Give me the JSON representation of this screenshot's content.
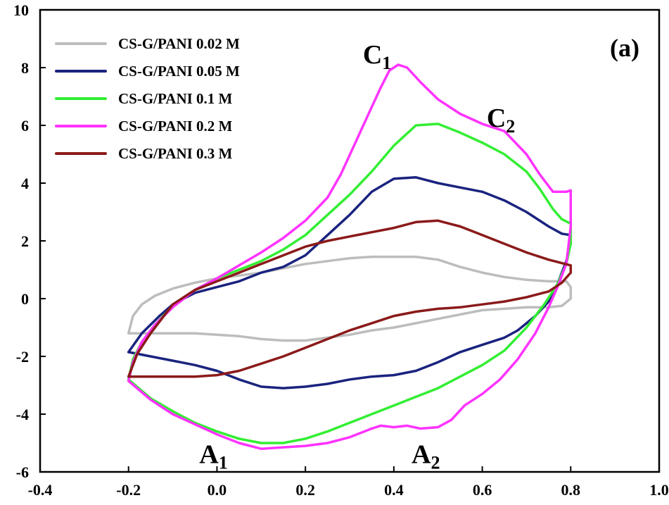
{
  "chart_data": {
    "type": "line",
    "title": "",
    "xlabel": "",
    "ylabel": "",
    "xlim": [
      -0.4,
      1.0
    ],
    "ylim": [
      -6,
      10
    ],
    "x_ticks": [
      "-0.4",
      "-0.2",
      "0.0",
      "0.2",
      "0.4",
      "0.6",
      "0.8",
      "1.0"
    ],
    "y_ticks": [
      "10",
      "8",
      "6",
      "4",
      "2",
      "0",
      "-2",
      "-4",
      "-6"
    ],
    "grid": false,
    "legend_position": "top-left",
    "panel_label": "(a)",
    "annotations": [
      {
        "main": "C",
        "sub": "1",
        "x": 0.33,
        "y": 8.15
      },
      {
        "main": "C",
        "sub": "2",
        "x": 0.61,
        "y": 5.95
      },
      {
        "main": "A",
        "sub": "1",
        "x": -0.04,
        "y": -5.7
      },
      {
        "main": "A",
        "sub": "2",
        "x": 0.44,
        "y": -5.7
      }
    ],
    "series": [
      {
        "name": "CS-G/PANI 0.02 M",
        "color": "#bdbdbd",
        "points": [
          [
            -0.2,
            -1.2
          ],
          [
            -0.19,
            -0.6
          ],
          [
            -0.17,
            -0.2
          ],
          [
            -0.14,
            0.1
          ],
          [
            -0.1,
            0.35
          ],
          [
            -0.05,
            0.55
          ],
          [
            0.0,
            0.7
          ],
          [
            0.05,
            0.8
          ],
          [
            0.1,
            0.9
          ],
          [
            0.15,
            1.05
          ],
          [
            0.2,
            1.2
          ],
          [
            0.25,
            1.3
          ],
          [
            0.3,
            1.4
          ],
          [
            0.35,
            1.45
          ],
          [
            0.4,
            1.45
          ],
          [
            0.45,
            1.45
          ],
          [
            0.5,
            1.35
          ],
          [
            0.55,
            1.1
          ],
          [
            0.6,
            0.9
          ],
          [
            0.65,
            0.75
          ],
          [
            0.7,
            0.65
          ],
          [
            0.75,
            0.6
          ],
          [
            0.79,
            0.6
          ],
          [
            0.8,
            0.4
          ],
          [
            0.8,
            0.0
          ],
          [
            0.78,
            -0.25
          ],
          [
            0.75,
            -0.3
          ],
          [
            0.7,
            -0.3
          ],
          [
            0.65,
            -0.35
          ],
          [
            0.6,
            -0.4
          ],
          [
            0.55,
            -0.55
          ],
          [
            0.5,
            -0.7
          ],
          [
            0.45,
            -0.85
          ],
          [
            0.4,
            -1.0
          ],
          [
            0.35,
            -1.1
          ],
          [
            0.3,
            -1.25
          ],
          [
            0.25,
            -1.35
          ],
          [
            0.2,
            -1.45
          ],
          [
            0.15,
            -1.45
          ],
          [
            0.1,
            -1.4
          ],
          [
            0.05,
            -1.3
          ],
          [
            0.0,
            -1.25
          ],
          [
            -0.05,
            -1.2
          ],
          [
            -0.1,
            -1.2
          ],
          [
            -0.15,
            -1.2
          ],
          [
            -0.2,
            -1.2
          ]
        ]
      },
      {
        "name": "CS-G/PANI 0.05 M",
        "color": "#1a237e",
        "points": [
          [
            -0.2,
            -1.85
          ],
          [
            -0.17,
            -1.2
          ],
          [
            -0.13,
            -0.6
          ],
          [
            -0.1,
            -0.2
          ],
          [
            -0.05,
            0.2
          ],
          [
            0.0,
            0.4
          ],
          [
            0.05,
            0.6
          ],
          [
            0.1,
            0.9
          ],
          [
            0.15,
            1.1
          ],
          [
            0.2,
            1.5
          ],
          [
            0.25,
            2.2
          ],
          [
            0.3,
            2.9
          ],
          [
            0.35,
            3.7
          ],
          [
            0.4,
            4.15
          ],
          [
            0.45,
            4.2
          ],
          [
            0.5,
            4.0
          ],
          [
            0.55,
            3.85
          ],
          [
            0.6,
            3.7
          ],
          [
            0.65,
            3.4
          ],
          [
            0.7,
            3.0
          ],
          [
            0.75,
            2.5
          ],
          [
            0.78,
            2.25
          ],
          [
            0.8,
            2.2
          ],
          [
            0.8,
            1.9
          ],
          [
            0.79,
            1.3
          ],
          [
            0.77,
            0.5
          ],
          [
            0.75,
            -0.1
          ],
          [
            0.72,
            -0.6
          ],
          [
            0.68,
            -1.1
          ],
          [
            0.65,
            -1.35
          ],
          [
            0.6,
            -1.6
          ],
          [
            0.55,
            -1.85
          ],
          [
            0.5,
            -2.2
          ],
          [
            0.45,
            -2.5
          ],
          [
            0.4,
            -2.65
          ],
          [
            0.35,
            -2.7
          ],
          [
            0.3,
            -2.8
          ],
          [
            0.25,
            -2.95
          ],
          [
            0.2,
            -3.05
          ],
          [
            0.15,
            -3.1
          ],
          [
            0.1,
            -3.05
          ],
          [
            0.05,
            -2.8
          ],
          [
            0.0,
            -2.5
          ],
          [
            -0.05,
            -2.3
          ],
          [
            -0.1,
            -2.15
          ],
          [
            -0.15,
            -2.0
          ],
          [
            -0.2,
            -1.85
          ]
        ]
      },
      {
        "name": "CS-G/PANI 0.1 M",
        "color": "#33ee33",
        "points": [
          [
            -0.2,
            -2.8
          ],
          [
            -0.19,
            -2.1
          ],
          [
            -0.17,
            -1.5
          ],
          [
            -0.14,
            -0.9
          ],
          [
            -0.1,
            -0.25
          ],
          [
            -0.05,
            0.3
          ],
          [
            0.0,
            0.7
          ],
          [
            0.05,
            1.0
          ],
          [
            0.1,
            1.3
          ],
          [
            0.15,
            1.7
          ],
          [
            0.2,
            2.2
          ],
          [
            0.25,
            2.9
          ],
          [
            0.3,
            3.6
          ],
          [
            0.35,
            4.4
          ],
          [
            0.4,
            5.3
          ],
          [
            0.45,
            6.0
          ],
          [
            0.5,
            6.05
          ],
          [
            0.55,
            5.75
          ],
          [
            0.6,
            5.4
          ],
          [
            0.65,
            5.0
          ],
          [
            0.7,
            4.4
          ],
          [
            0.73,
            3.8
          ],
          [
            0.76,
            3.1
          ],
          [
            0.78,
            2.75
          ],
          [
            0.8,
            2.6
          ],
          [
            0.8,
            1.9
          ],
          [
            0.79,
            1.2
          ],
          [
            0.77,
            0.5
          ],
          [
            0.74,
            -0.2
          ],
          [
            0.7,
            -1.0
          ],
          [
            0.65,
            -1.8
          ],
          [
            0.6,
            -2.3
          ],
          [
            0.55,
            -2.7
          ],
          [
            0.5,
            -3.1
          ],
          [
            0.45,
            -3.4
          ],
          [
            0.4,
            -3.7
          ],
          [
            0.35,
            -4.0
          ],
          [
            0.3,
            -4.3
          ],
          [
            0.25,
            -4.6
          ],
          [
            0.2,
            -4.85
          ],
          [
            0.15,
            -5.0
          ],
          [
            0.1,
            -5.0
          ],
          [
            0.05,
            -4.85
          ],
          [
            0.0,
            -4.6
          ],
          [
            -0.05,
            -4.3
          ],
          [
            -0.1,
            -3.9
          ],
          [
            -0.15,
            -3.45
          ],
          [
            -0.2,
            -2.8
          ]
        ]
      },
      {
        "name": "CS-G/PANI 0.2 M",
        "color": "#ff33ff",
        "points": [
          [
            -0.2,
            -2.85
          ],
          [
            -0.19,
            -2.2
          ],
          [
            -0.17,
            -1.5
          ],
          [
            -0.14,
            -0.9
          ],
          [
            -0.1,
            -0.3
          ],
          [
            -0.05,
            0.3
          ],
          [
            0.0,
            0.7
          ],
          [
            0.05,
            1.15
          ],
          [
            0.1,
            1.6
          ],
          [
            0.15,
            2.1
          ],
          [
            0.2,
            2.7
          ],
          [
            0.25,
            3.5
          ],
          [
            0.28,
            4.3
          ],
          [
            0.31,
            5.3
          ],
          [
            0.34,
            6.3
          ],
          [
            0.37,
            7.3
          ],
          [
            0.39,
            7.9
          ],
          [
            0.41,
            8.1
          ],
          [
            0.43,
            8.0
          ],
          [
            0.46,
            7.5
          ],
          [
            0.5,
            6.9
          ],
          [
            0.55,
            6.4
          ],
          [
            0.6,
            6.05
          ],
          [
            0.65,
            5.8
          ],
          [
            0.7,
            5.0
          ],
          [
            0.73,
            4.3
          ],
          [
            0.76,
            3.7
          ],
          [
            0.79,
            3.7
          ],
          [
            0.8,
            3.75
          ],
          [
            0.8,
            2.5
          ],
          [
            0.79,
            1.2
          ],
          [
            0.77,
            0.4
          ],
          [
            0.75,
            -0.3
          ],
          [
            0.72,
            -1.2
          ],
          [
            0.68,
            -2.1
          ],
          [
            0.64,
            -2.8
          ],
          [
            0.6,
            -3.3
          ],
          [
            0.56,
            -3.7
          ],
          [
            0.53,
            -4.2
          ],
          [
            0.5,
            -4.45
          ],
          [
            0.46,
            -4.5
          ],
          [
            0.43,
            -4.4
          ],
          [
            0.4,
            -4.45
          ],
          [
            0.37,
            -4.4
          ],
          [
            0.35,
            -4.5
          ],
          [
            0.3,
            -4.8
          ],
          [
            0.25,
            -5.0
          ],
          [
            0.2,
            -5.1
          ],
          [
            0.15,
            -5.15
          ],
          [
            0.1,
            -5.2
          ],
          [
            0.05,
            -5.0
          ],
          [
            0.0,
            -4.7
          ],
          [
            -0.05,
            -4.35
          ],
          [
            -0.1,
            -4.0
          ],
          [
            -0.15,
            -3.5
          ],
          [
            -0.2,
            -2.85
          ]
        ]
      },
      {
        "name": "CS-G/PANI 0.3 M",
        "color": "#8b1a1a",
        "points": [
          [
            -0.2,
            -2.7
          ],
          [
            -0.18,
            -1.9
          ],
          [
            -0.15,
            -1.2
          ],
          [
            -0.12,
            -0.6
          ],
          [
            -0.1,
            -0.2
          ],
          [
            -0.05,
            0.3
          ],
          [
            0.0,
            0.6
          ],
          [
            0.05,
            0.9
          ],
          [
            0.1,
            1.2
          ],
          [
            0.15,
            1.5
          ],
          [
            0.2,
            1.8
          ],
          [
            0.25,
            2.0
          ],
          [
            0.3,
            2.15
          ],
          [
            0.35,
            2.3
          ],
          [
            0.4,
            2.45
          ],
          [
            0.45,
            2.65
          ],
          [
            0.5,
            2.7
          ],
          [
            0.55,
            2.5
          ],
          [
            0.6,
            2.2
          ],
          [
            0.65,
            1.9
          ],
          [
            0.7,
            1.6
          ],
          [
            0.75,
            1.35
          ],
          [
            0.8,
            1.15
          ],
          [
            0.8,
            0.9
          ],
          [
            0.78,
            0.55
          ],
          [
            0.75,
            0.25
          ],
          [
            0.7,
            0.05
          ],
          [
            0.65,
            -0.1
          ],
          [
            0.6,
            -0.2
          ],
          [
            0.55,
            -0.3
          ],
          [
            0.5,
            -0.35
          ],
          [
            0.45,
            -0.45
          ],
          [
            0.4,
            -0.6
          ],
          [
            0.35,
            -0.85
          ],
          [
            0.3,
            -1.1
          ],
          [
            0.25,
            -1.4
          ],
          [
            0.2,
            -1.7
          ],
          [
            0.15,
            -2.0
          ],
          [
            0.1,
            -2.25
          ],
          [
            0.05,
            -2.5
          ],
          [
            0.0,
            -2.65
          ],
          [
            -0.05,
            -2.7
          ],
          [
            -0.1,
            -2.7
          ],
          [
            -0.15,
            -2.7
          ],
          [
            -0.2,
            -2.7
          ]
        ]
      }
    ]
  }
}
